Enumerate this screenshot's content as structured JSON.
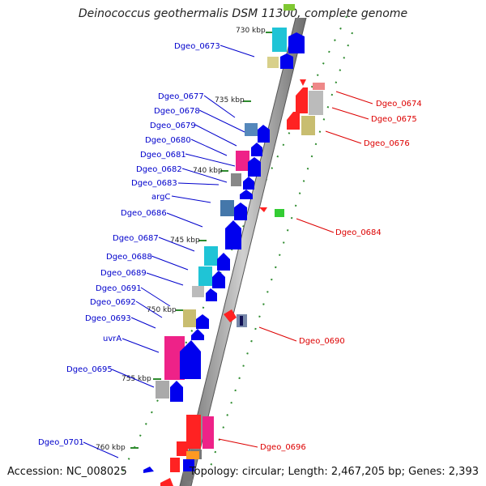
{
  "title": "Deinococcus geothermalis DSM 11300, complete genome",
  "footer": {
    "accession": "Accession: NC_008025",
    "summary": "Topology: circular; Length: 2,467,205 bp; Genes: 2,393"
  },
  "colors": {
    "left_label": "#0000cc",
    "right_label": "#dd0000",
    "tick": "#2e8b2e",
    "backbone": "#888888"
  },
  "kbp_ticks": [
    "730 kbp",
    "735 kbp",
    "740 kbp",
    "745 kbp",
    "750 kbp",
    "755 kbp",
    "760 kbp"
  ],
  "left_labels": [
    "Dgeo_0673",
    "Dgeo_0677",
    "Dgeo_0678",
    "Dgeo_0679",
    "Dgeo_0680",
    "Dgeo_0681",
    "Dgeo_0682",
    "Dgeo_0683",
    "argC",
    "Dgeo_0686",
    "Dgeo_0687",
    "Dgeo_0688",
    "Dgeo_0689",
    "Dgeo_0691",
    "Dgeo_0692",
    "Dgeo_0693",
    "uvrA",
    "Dgeo_0695",
    "Dgeo_0701"
  ],
  "right_labels": [
    "Dgeo_0674",
    "Dgeo_0675",
    "Dgeo_0676",
    "Dgeo_0684",
    "Dgeo_0690",
    "Dgeo_0696"
  ]
}
